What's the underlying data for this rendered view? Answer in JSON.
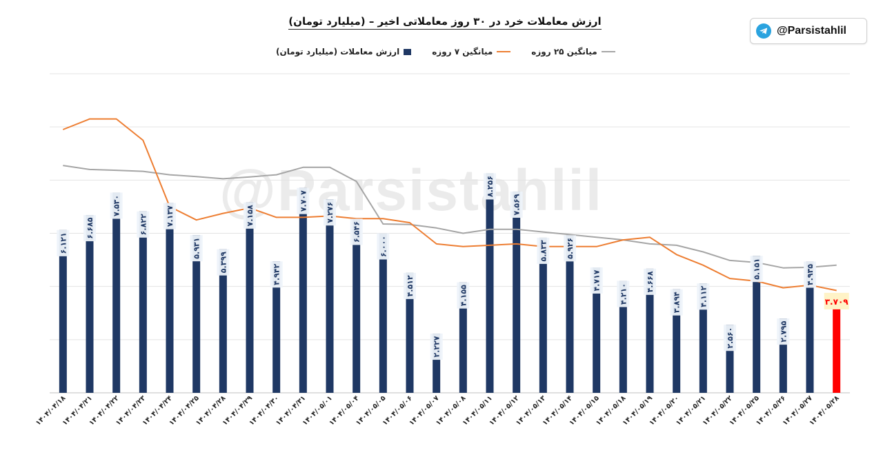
{
  "header": {
    "title": "ارزش معاملات خرد در ۳۰ روز معاملاتی اخیر – (میلیارد تومان)"
  },
  "badge": {
    "handle": "@Parsistahlil",
    "icon": "telegram-icon"
  },
  "watermark": {
    "text": "@Parsistahlil"
  },
  "legend": [
    {
      "label": "ارزش معاملات (میلیارد تومان)",
      "kind": "bar",
      "color": "#1f3864"
    },
    {
      "label": "میانگین ۷ روزه",
      "kind": "line",
      "color": "#ed7d31"
    },
    {
      "label": "میانگین ۲۵ روزه",
      "kind": "line",
      "color": "#a5a5a5"
    }
  ],
  "chart_data": {
    "type": "bar",
    "categories": [
      "۱۴۰۴/۰۴/۱۸",
      "۱۴۰۴/۰۴/۲۱",
      "۱۴۰۴/۰۴/۲۲",
      "۱۴۰۴/۰۴/۲۳",
      "۱۴۰۴/۰۴/۲۴",
      "۱۴۰۴/۰۴/۲۵",
      "۱۴۰۴/۰۴/۲۸",
      "۱۴۰۴/۰۴/۲۹",
      "۱۴۰۴/۰۴/۳۰",
      "۱۴۰۴/۰۴/۳۱",
      "۱۴۰۴/۰۵/۰۱",
      "۱۴۰۴/۰۵/۰۴",
      "۱۴۰۴/۰۵/۰۵",
      "۱۴۰۴/۰۵/۰۶",
      "۱۴۰۴/۰۵/۰۷",
      "۱۴۰۴/۰۵/۰۸",
      "۱۴۰۴/۰۵/۱۱",
      "۱۴۰۴/۰۵/۱۲",
      "۱۴۰۴/۰۵/۱۳",
      "۱۴۰۴/۰۵/۱۴",
      "۱۴۰۴/۰۵/۱۵",
      "۱۴۰۴/۰۵/۱۸",
      "۱۴۰۴/۰۵/۱۹",
      "۱۴۰۴/۰۵/۲۰",
      "۱۴۰۴/۰۵/۲۱",
      "۱۴۰۴/۰۵/۲۲",
      "۱۴۰۴/۰۵/۲۵",
      "۱۴۰۴/۰۵/۲۶",
      "۱۴۰۴/۰۵/۲۷",
      "۱۴۰۴/۰۵/۲۸"
    ],
    "series": [
      {
        "name": "ارزش معاملات (میلیارد تومان)",
        "type": "bar",
        "color": "#1f3864",
        "last_color": "#ff0000",
        "values": [
          6.121,
          6.685,
          7.53,
          6.822,
          7.137,
          5.931,
          5.399,
          7.158,
          4.942,
          7.707,
          7.276,
          6.546,
          6.0,
          4.512,
          2.227,
          4.155,
          8.256,
          7.569,
          5.833,
          5.926,
          4.717,
          4.21,
          4.668,
          3.894,
          4.112,
          2.56,
          5.151,
          2.795,
          4.935,
          3.709
        ],
        "labels": [
          "۶.۱۲۱",
          "۶.۶۸۵",
          "۷.۵۳۰",
          "۶.۸۲۲",
          "۷.۱۳۷",
          "۵.۹۳۱",
          "۵.۳۹۹",
          "۷.۱۵۸",
          "۴.۹۴۲",
          "۷.۷۰۷",
          "۷.۲۷۶",
          "۶.۵۴۶",
          "۶.۰۰۰",
          "۴.۵۱۲",
          "۲.۲۲۷",
          "۴.۱۵۵",
          "۸.۲۵۶",
          "۷.۵۶۹",
          "۵.۸۳۳",
          "۵.۹۲۶",
          "۴.۷۱۷",
          "۴.۲۱۰",
          "۴.۶۶۸",
          "۳.۸۹۴",
          "۴.۱۱۲",
          "۲.۵۶۰",
          "۵.۱۵۱",
          "۲.۷۹۵",
          "۴.۹۳۵",
          "۳.۷۰۹"
        ]
      },
      {
        "name": "میانگین ۷ روزه",
        "type": "line",
        "color": "#ed7d31",
        "values": [
          9.9,
          10.3,
          10.3,
          9.5,
          7.0,
          6.5,
          6.75,
          6.95,
          6.6,
          6.6,
          6.65,
          6.55,
          6.55,
          6.4,
          5.6,
          5.5,
          5.55,
          5.6,
          5.5,
          5.5,
          5.5,
          5.75,
          5.85,
          5.2,
          4.8,
          4.3,
          4.2,
          3.95,
          4.05,
          3.85
        ]
      },
      {
        "name": "میانگین ۲۵ روزه",
        "type": "line",
        "color": "#a5a5a5",
        "values": [
          8.55,
          8.4,
          8.37,
          8.33,
          8.2,
          8.13,
          8.05,
          8.12,
          8.2,
          8.48,
          8.48,
          7.95,
          6.35,
          6.33,
          6.2,
          6.0,
          6.15,
          6.15,
          6.05,
          5.95,
          5.85,
          5.75,
          5.6,
          5.55,
          5.3,
          4.98,
          4.9,
          4.7,
          4.72,
          4.8
        ]
      }
    ],
    "ylim": [
      0,
      12
    ],
    "grid": true,
    "legend_position": "top"
  }
}
